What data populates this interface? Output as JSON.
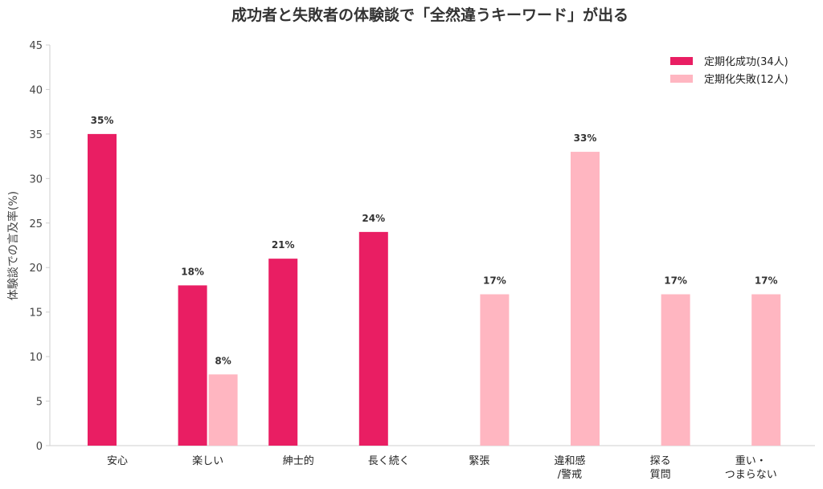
{
  "chart_data": {
    "type": "bar",
    "title": "成功者と失敗者の体験談で「全然違うキーワード」が出る",
    "ylabel": "体験談での言及率(%)",
    "xlabel": "",
    "ylim": [
      0,
      45
    ],
    "yticks": [
      0,
      5,
      10,
      15,
      20,
      25,
      30,
      35,
      40,
      45
    ],
    "grid": false,
    "legend_position": "top-right",
    "categories": [
      [
        "安心"
      ],
      [
        "楽しい"
      ],
      [
        "紳士的"
      ],
      [
        "長く続く"
      ],
      [
        "緊張"
      ],
      [
        "違和感",
        "/警戒"
      ],
      [
        "探る",
        "質問"
      ],
      [
        "重い・",
        "つまらない"
      ]
    ],
    "series": [
      {
        "name": "定期化成功(34人)",
        "color": "#e91e63",
        "values": [
          35,
          18,
          21,
          24,
          null,
          null,
          null,
          null
        ]
      },
      {
        "name": "定期化失敗(12人)",
        "color": "#ffb6c1",
        "values": [
          null,
          8,
          null,
          null,
          17,
          33,
          17,
          17
        ]
      }
    ],
    "data_labels": [
      [
        "35%",
        "18%",
        "21%",
        "24%",
        null,
        null,
        null,
        null
      ],
      [
        null,
        "8%",
        null,
        null,
        "17%",
        "33%",
        "17%",
        "17%"
      ]
    ]
  }
}
